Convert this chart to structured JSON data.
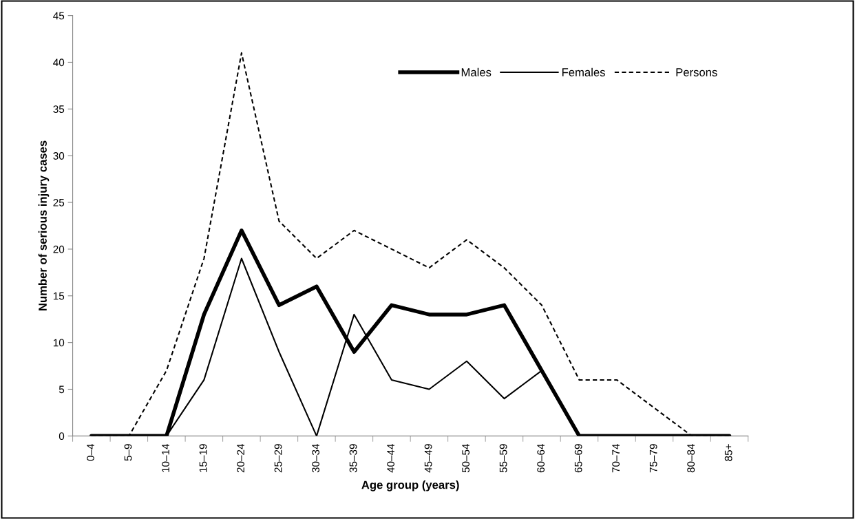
{
  "chart_data": {
    "type": "line",
    "xlabel": "Age group (years)",
    "ylabel": "Number of serious injury cases",
    "categories": [
      "0–4",
      "5–9",
      "10–14",
      "15–19",
      "20–24",
      "25–29",
      "30–34",
      "35–39",
      "40–44",
      "45–49",
      "50–54",
      "55–59",
      "60–64",
      "65–69",
      "70–74",
      "75–79",
      "80–84",
      "85+"
    ],
    "series": [
      {
        "name": "Males",
        "color": "#000000",
        "line_style": "solid",
        "values": [
          0,
          0,
          0,
          13,
          22,
          14,
          16,
          9,
          14,
          13,
          13,
          14,
          7,
          0,
          0,
          0,
          0,
          0
        ]
      },
      {
        "name": "Females",
        "color": "#000000",
        "line_style": "solid",
        "values": [
          0,
          0,
          0,
          6,
          19,
          9,
          0,
          13,
          6,
          5,
          8,
          4,
          7,
          0,
          0,
          0,
          0,
          0
        ]
      },
      {
        "name": "Persons",
        "color": "#000000",
        "line_style": "dashed",
        "values": [
          0,
          0,
          7,
          19,
          41,
          23,
          19,
          22,
          20,
          18,
          21,
          18,
          14,
          6,
          6,
          3,
          0,
          0
        ]
      }
    ],
    "ylim": [
      0,
      45
    ],
    "yticks": [
      0,
      5,
      10,
      15,
      20,
      25,
      30,
      35,
      40,
      45
    ],
    "grid": false,
    "legend": "top right",
    "marker": "none"
  }
}
